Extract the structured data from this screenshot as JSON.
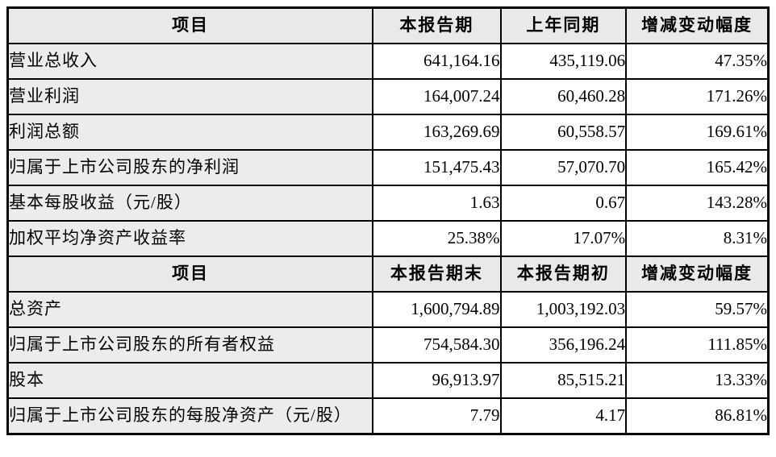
{
  "colors": {
    "border": "#000000",
    "header_background": "#e9e9e9",
    "label_column_background": "#ececec",
    "value_cell_background": "#ffffff",
    "label_text": "#000000",
    "number_text": "#1c2133"
  },
  "table": {
    "sections": [
      {
        "headers": [
          "项目",
          "本报告期",
          "上年同期",
          "增减变动幅度"
        ],
        "rows": [
          {
            "label": "营业总收入",
            "v1": "641,164.16",
            "v2": "435,119.06",
            "v3": "47.35%"
          },
          {
            "label": "营业利润",
            "v1": "164,007.24",
            "v2": "60,460.28",
            "v3": "171.26%"
          },
          {
            "label": "利润总额",
            "v1": "163,269.69",
            "v2": "60,558.57",
            "v3": "169.61%"
          },
          {
            "label": "归属于上市公司股东的净利润",
            "v1": "151,475.43",
            "v2": "57,070.70",
            "v3": "165.42%"
          },
          {
            "label": "基本每股收益（元/股）",
            "v1": "1.63",
            "v2": "0.67",
            "v3": "143.28%"
          },
          {
            "label": "加权平均净资产收益率",
            "v1": "25.38%",
            "v2": "17.07%",
            "v3": "8.31%"
          }
        ]
      },
      {
        "headers": [
          "项目",
          "本报告期末",
          "本报告期初",
          "增减变动幅度"
        ],
        "rows": [
          {
            "label": "总资产",
            "v1": "1,600,794.89",
            "v2": "1,003,192.03",
            "v3": "59.57%"
          },
          {
            "label": "归属于上市公司股东的所有者权益",
            "v1": "754,584.30",
            "v2": "356,196.24",
            "v3": "111.85%"
          },
          {
            "label": "股本",
            "v1": "96,913.97",
            "v2": "85,515.21",
            "v3": "13.33%"
          },
          {
            "label": "归属于上市公司股东的每股净资产（元/股）",
            "v1": "7.79",
            "v2": "4.17",
            "v3": "86.81%"
          }
        ]
      }
    ]
  }
}
